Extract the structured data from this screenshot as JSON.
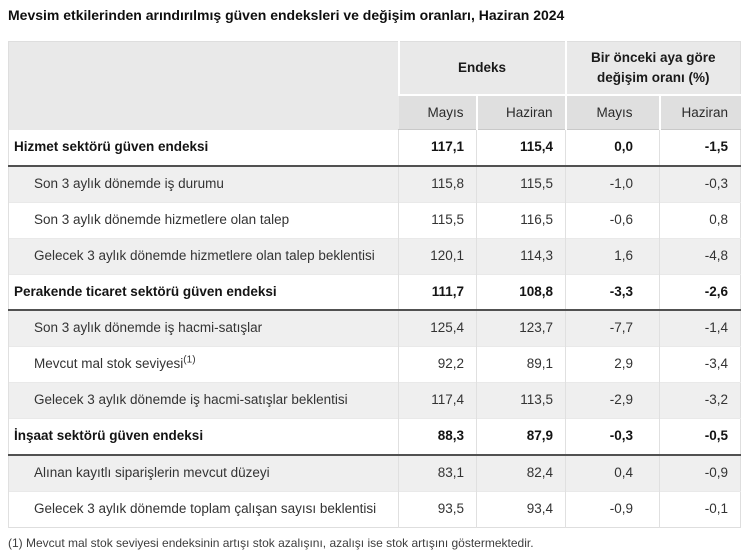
{
  "chart_data": {
    "type": "table",
    "title": "Mevsim etkilerinden arındırılmış güven endeksleri ve değişim oranları, Haziran 2024",
    "column_groups": [
      {
        "label": "Endeks",
        "span": 2
      },
      {
        "label": "Bir önceki aya göre değişim oranı (%)",
        "span": 2
      }
    ],
    "columns": [
      "Mayıs",
      "Haziran",
      "Mayıs",
      "Haziran"
    ],
    "rows": [
      {
        "label": "Hizmet sektörü güven endeksi",
        "bold": true,
        "values": [
          "117,1",
          "115,4",
          "0,0",
          "-1,5"
        ]
      },
      {
        "label": "Son 3 aylık dönemde iş durumu",
        "bold": false,
        "values": [
          "115,8",
          "115,5",
          "-1,0",
          "-0,3"
        ]
      },
      {
        "label": "Son 3 aylık dönemde hizmetlere olan talep",
        "bold": false,
        "values": [
          "115,5",
          "116,5",
          "-0,6",
          "0,8"
        ]
      },
      {
        "label": "Gelecek 3 aylık dönemde hizmetlere olan talep beklentisi",
        "bold": false,
        "justify": true,
        "values": [
          "120,1",
          "114,3",
          "1,6",
          "-4,8"
        ]
      },
      {
        "label": "Perakende ticaret sektörü güven endeksi",
        "bold": true,
        "values": [
          "111,7",
          "108,8",
          "-3,3",
          "-2,6"
        ]
      },
      {
        "label": "Son 3 aylık dönemde iş hacmi-satışlar",
        "bold": false,
        "values": [
          "125,4",
          "123,7",
          "-7,7",
          "-1,4"
        ]
      },
      {
        "label": "Mevcut mal stok seviyesi",
        "sup": "(1)",
        "bold": false,
        "values": [
          "92,2",
          "89,1",
          "2,9",
          "-3,4"
        ]
      },
      {
        "label": "Gelecek 3 aylık dönemde iş hacmi-satışlar beklentisi",
        "bold": false,
        "values": [
          "117,4",
          "113,5",
          "-2,9",
          "-3,2"
        ]
      },
      {
        "label": "İnşaat sektörü güven endeksi",
        "bold": true,
        "values": [
          "88,3",
          "87,9",
          "-0,3",
          "-0,5"
        ]
      },
      {
        "label": "Alınan kayıtlı siparişlerin mevcut düzeyi",
        "bold": false,
        "values": [
          "83,1",
          "82,4",
          "0,4",
          "-0,9"
        ]
      },
      {
        "label": "Gelecek 3 aylık dönemde toplam çalışan sayısı beklentisi",
        "bold": false,
        "values": [
          "93,5",
          "93,4",
          "-0,9",
          "-0,1"
        ]
      }
    ],
    "footnote": "(1) Mevcut mal stok seviyesi endeksinin artışı stok azalışını, azalışı ise stok artışını göstermektedir.",
    "layout_hints": {
      "striped_rows": true,
      "section_rows_bold_with_dark_bottom_border": true,
      "grid": true,
      "number_alignment": "right",
      "decimal_separator": ","
    }
  },
  "colors": {
    "header_group_bg": "#e9e9e9",
    "header_sub_bg": "#dfdfdf",
    "stripe_bg": "#efefef",
    "section_border": "#515151",
    "grid_line": "#e0e0e0"
  }
}
